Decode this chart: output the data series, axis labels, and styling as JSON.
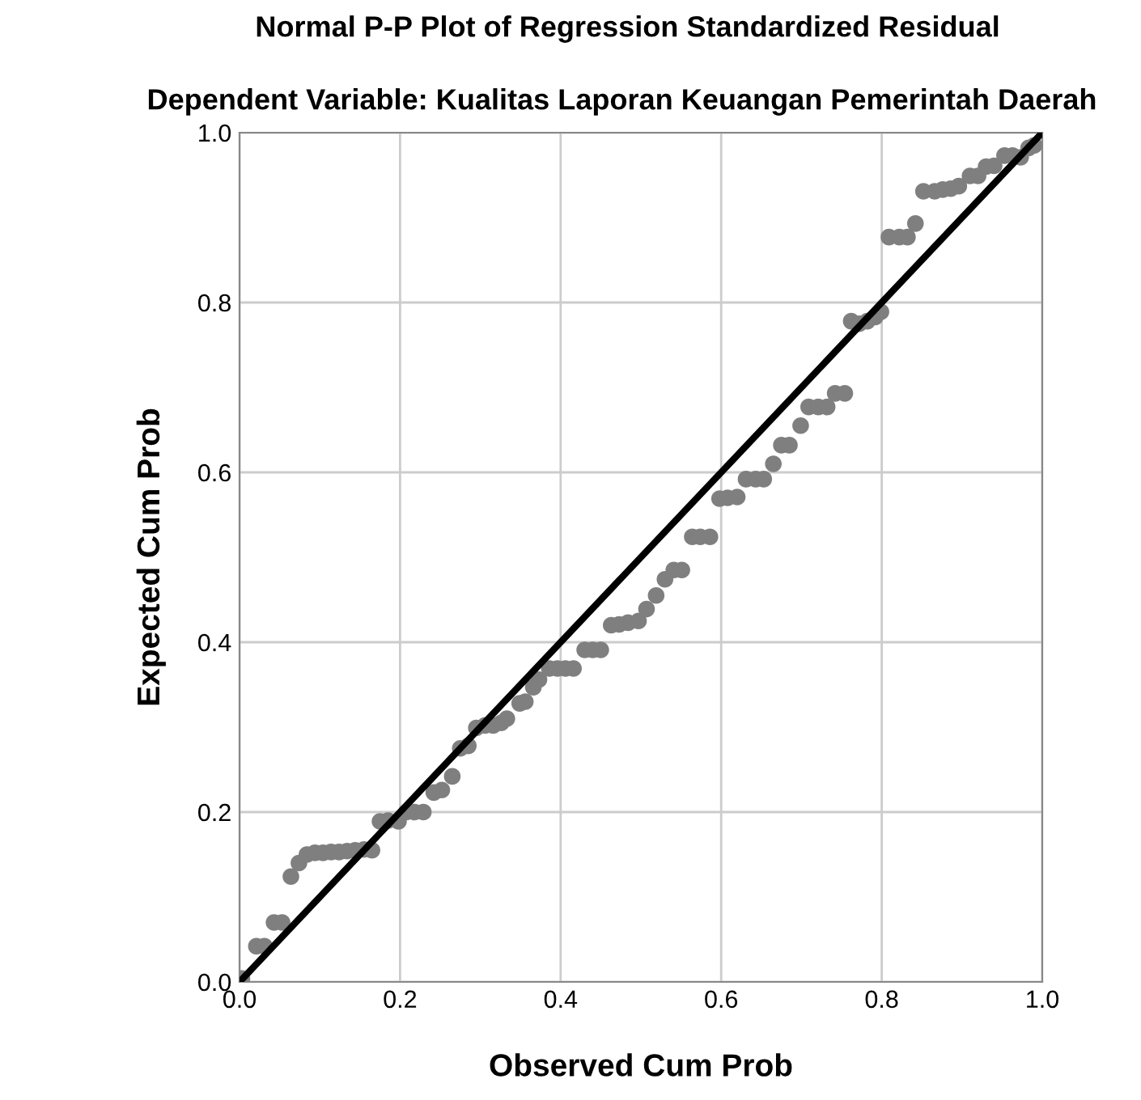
{
  "chart_data": {
    "type": "scatter",
    "title": "Normal P-P Plot of Regression Standardized Residual",
    "subtitle": "Dependent Variable: Kualitas Laporan Keuangan Pemerintah Daerah",
    "xlabel": "Observed Cum Prob",
    "ylabel": "Expected Cum Prob",
    "xlim": [
      0,
      1
    ],
    "ylim": [
      0,
      1
    ],
    "xticks": [
      {
        "value": 0,
        "label": "0.0"
      },
      {
        "value": 0.2,
        "label": "0.2"
      },
      {
        "value": 0.4,
        "label": "0.4"
      },
      {
        "value": 0.6,
        "label": "0.6"
      },
      {
        "value": 0.8,
        "label": "0.8"
      },
      {
        "value": 1,
        "label": "1.0"
      }
    ],
    "yticks": [
      {
        "value": 0,
        "label": "0.0"
      },
      {
        "value": 0.2,
        "label": "0.2"
      },
      {
        "value": 0.4,
        "label": "0.4"
      },
      {
        "value": 0.6,
        "label": "0.6"
      },
      {
        "value": 0.8,
        "label": "0.8"
      },
      {
        "value": 1,
        "label": "1.0"
      }
    ],
    "grid": true,
    "series": [
      {
        "marker": "circle",
        "color": "#7f7f7f",
        "x": [
          0.003,
          0.021,
          0.031,
          0.043,
          0.053,
          0.064,
          0.074,
          0.084,
          0.094,
          0.104,
          0.114,
          0.124,
          0.134,
          0.144,
          0.155,
          0.165,
          0.175,
          0.185,
          0.198,
          0.208,
          0.218,
          0.229,
          0.242,
          0.252,
          0.265,
          0.275,
          0.285,
          0.295,
          0.306,
          0.316,
          0.326,
          0.333,
          0.349,
          0.356,
          0.366,
          0.373,
          0.386,
          0.396,
          0.406,
          0.416,
          0.43,
          0.44,
          0.45,
          0.463,
          0.473,
          0.484,
          0.497,
          0.507,
          0.519,
          0.53,
          0.541,
          0.551,
          0.564,
          0.574,
          0.586,
          0.598,
          0.608,
          0.62,
          0.631,
          0.643,
          0.653,
          0.665,
          0.675,
          0.685,
          0.699,
          0.709,
          0.721,
          0.732,
          0.742,
          0.754,
          0.762,
          0.772,
          0.782,
          0.792,
          0.799,
          0.809,
          0.822,
          0.832,
          0.842,
          0.852,
          0.866,
          0.876,
          0.886,
          0.896,
          0.91,
          0.92,
          0.93,
          0.94,
          0.953,
          0.963,
          0.973,
          0.983,
          0.99
        ],
        "values": [
          0.004,
          0.042,
          0.042,
          0.07,
          0.07,
          0.124,
          0.14,
          0.15,
          0.152,
          0.152,
          0.153,
          0.153,
          0.154,
          0.155,
          0.156,
          0.155,
          0.189,
          0.19,
          0.189,
          0.2,
          0.2,
          0.2,
          0.223,
          0.226,
          0.242,
          0.275,
          0.278,
          0.299,
          0.302,
          0.302,
          0.305,
          0.31,
          0.328,
          0.33,
          0.347,
          0.356,
          0.369,
          0.369,
          0.369,
          0.369,
          0.391,
          0.391,
          0.391,
          0.42,
          0.421,
          0.423,
          0.425,
          0.439,
          0.455,
          0.474,
          0.485,
          0.485,
          0.524,
          0.524,
          0.524,
          0.569,
          0.57,
          0.571,
          0.592,
          0.592,
          0.592,
          0.61,
          0.632,
          0.632,
          0.655,
          0.677,
          0.677,
          0.677,
          0.693,
          0.693,
          0.778,
          0.775,
          0.778,
          0.783,
          0.789,
          0.877,
          0.877,
          0.877,
          0.893,
          0.931,
          0.931,
          0.933,
          0.934,
          0.937,
          0.949,
          0.949,
          0.96,
          0.961,
          0.973,
          0.973,
          0.971,
          0.982,
          0.985
        ]
      },
      {
        "type": "line",
        "marker": "none",
        "color": "#000000",
        "x": [
          0,
          1
        ],
        "values": [
          0,
          1
        ]
      }
    ]
  }
}
